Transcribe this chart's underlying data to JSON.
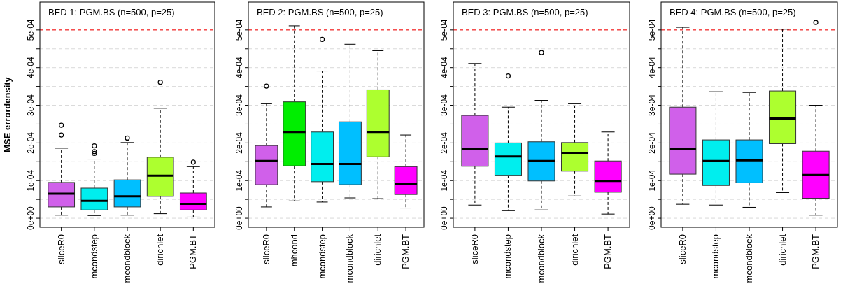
{
  "chart_data": [
    {
      "type": "box",
      "title": "BED 1: PGM.BS (n=500, p=25)",
      "ylabel": "MSE errordensity",
      "categories": [
        "sliceR0",
        "mcondstep",
        "mcondblock",
        "dirichlet",
        "PGM.BT"
      ],
      "colors": [
        "#d060ea",
        "#00eeee",
        "#00bfff",
        "#adff2f",
        "#ff00ff"
      ],
      "boxes": [
        {
          "low": 8e-06,
          "q1": 3e-05,
          "median": 6.5e-05,
          "q3": 9.5e-05,
          "high": 0.000186,
          "outliers": [
            0.000221,
            0.000247
          ]
        },
        {
          "low": 7e-06,
          "q1": 2.2e-05,
          "median": 4.6e-05,
          "q3": 8e-05,
          "high": 0.000157,
          "outliers": [
            0.000172,
            0.000177,
            0.000192
          ]
        },
        {
          "low": 8e-06,
          "q1": 3e-05,
          "median": 5.8e-05,
          "q3": 0.000102,
          "high": 0.000201,
          "outliers": [
            0.000213
          ]
        },
        {
          "low": 1.2e-05,
          "q1": 5.8e-05,
          "median": 0.000113,
          "q3": 0.000162,
          "high": 0.000292,
          "outliers": [
            0.000361
          ]
        },
        {
          "low": 3e-06,
          "q1": 2.2e-05,
          "median": 3.8e-05,
          "q3": 6.7e-05,
          "high": 0.000137,
          "outliers": [
            0.000149
          ]
        }
      ],
      "ylim": [
        -2.4e-05,
        0.000574
      ],
      "yticks": [
        {
          "value": 0,
          "label": "0e+00"
        },
        {
          "value": 5e-05,
          "label": null
        },
        {
          "value": 0.0001,
          "label": "1e-04"
        },
        {
          "value": 0.00015,
          "label": null
        },
        {
          "value": 0.0002,
          "label": "2e-04"
        },
        {
          "value": 0.00025,
          "label": null
        },
        {
          "value": 0.0003,
          "label": "3e-04"
        },
        {
          "value": 0.00035,
          "label": null
        },
        {
          "value": 0.0004,
          "label": "4e-04"
        },
        {
          "value": 0.00045,
          "label": null
        },
        {
          "value": 0.0005,
          "label": "5e-04"
        }
      ],
      "grid": "y",
      "ref_lines": [
        {
          "axis": "y",
          "value": 0.0005,
          "color": "#ff0000",
          "line_style": "dashed"
        }
      ]
    },
    {
      "type": "box",
      "title": "BED 2: PGM.BS (n=500, p=25)",
      "categories": [
        "sliceR0",
        "mhcond",
        "mcondstep",
        "mcondblock",
        "dirichlet",
        "PGM.BT"
      ],
      "colors": [
        "#d060ea",
        "#00ee00",
        "#00eeee",
        "#00bfff",
        "#adff2f",
        "#ff00ff"
      ],
      "boxes": [
        {
          "low": 3e-05,
          "q1": 8.9e-05,
          "median": 0.000152,
          "q3": 0.000193,
          "high": 0.000304,
          "outliers": [
            0.000351
          ]
        },
        {
          "low": 4.6e-05,
          "q1": 0.000139,
          "median": 0.000229,
          "q3": 0.000309,
          "high": 0.000511
        },
        {
          "low": 4.3e-05,
          "q1": 9.7e-05,
          "median": 0.000144,
          "q3": 0.000229,
          "high": 0.000391,
          "outliers": [
            0.000475
          ]
        },
        {
          "low": 5.4e-05,
          "q1": 8.9e-05,
          "median": 0.000144,
          "q3": 0.000256,
          "high": 0.000462
        },
        {
          "low": 5.2e-05,
          "q1": 0.000163,
          "median": 0.000229,
          "q3": 0.000341,
          "high": 0.000445
        },
        {
          "low": 2.7e-05,
          "q1": 6.3e-05,
          "median": 9e-05,
          "q3": 0.000137,
          "high": 0.000221
        }
      ],
      "ylim": [
        -2.4e-05,
        0.000574
      ],
      "yticks": [
        {
          "value": 0,
          "label": "0e+00"
        },
        {
          "value": 5e-05,
          "label": null
        },
        {
          "value": 0.0001,
          "label": "1e-04"
        },
        {
          "value": 0.00015,
          "label": null
        },
        {
          "value": 0.0002,
          "label": "2e-04"
        },
        {
          "value": 0.00025,
          "label": null
        },
        {
          "value": 0.0003,
          "label": "3e-04"
        },
        {
          "value": 0.00035,
          "label": null
        },
        {
          "value": 0.0004,
          "label": "4e-04"
        },
        {
          "value": 0.00045,
          "label": null
        },
        {
          "value": 0.0005,
          "label": "5e-04"
        }
      ],
      "grid": "y",
      "ref_lines": [
        {
          "axis": "y",
          "value": 0.0005,
          "color": "#ff0000",
          "line_style": "dashed"
        }
      ]
    },
    {
      "type": "box",
      "title": "BED 3: PGM.BS (n=500, p=25)",
      "categories": [
        "sliceR0",
        "mcondstep",
        "mcondblock",
        "dirichlet",
        "PGM.BT"
      ],
      "colors": [
        "#d060ea",
        "#00eeee",
        "#00bfff",
        "#adff2f",
        "#ff00ff"
      ],
      "boxes": [
        {
          "low": 3.5e-05,
          "q1": 0.000138,
          "median": 0.000183,
          "q3": 0.000273,
          "high": 0.000411
        },
        {
          "low": 2e-05,
          "q1": 0.000114,
          "median": 0.000164,
          "q3": 0.0002,
          "high": 0.000295,
          "outliers": [
            0.000378
          ]
        },
        {
          "low": 2.2e-05,
          "q1": 9.9e-05,
          "median": 0.000152,
          "q3": 0.000203,
          "high": 0.000313,
          "outliers": [
            0.00044
          ]
        },
        {
          "low": 5.9e-05,
          "q1": 0.000125,
          "median": 0.000174,
          "q3": 0.000201,
          "high": 0.000304
        },
        {
          "low": 1.1e-05,
          "q1": 6.9e-05,
          "median": 9.9e-05,
          "q3": 0.000152,
          "high": 0.000229
        }
      ],
      "ylim": [
        -2.4e-05,
        0.000574
      ],
      "yticks": [
        {
          "value": 0,
          "label": "0e+00"
        },
        {
          "value": 5e-05,
          "label": null
        },
        {
          "value": 0.0001,
          "label": "1e-04"
        },
        {
          "value": 0.00015,
          "label": null
        },
        {
          "value": 0.0002,
          "label": "2e-04"
        },
        {
          "value": 0.00025,
          "label": null
        },
        {
          "value": 0.0003,
          "label": "3e-04"
        },
        {
          "value": 0.00035,
          "label": null
        },
        {
          "value": 0.0004,
          "label": "4e-04"
        },
        {
          "value": 0.00045,
          "label": null
        },
        {
          "value": 0.0005,
          "label": "5e-04"
        }
      ],
      "grid": "y",
      "ref_lines": [
        {
          "axis": "y",
          "value": 0.0005,
          "color": "#ff0000",
          "line_style": "dashed"
        }
      ]
    },
    {
      "type": "box",
      "title": "BED 4: PGM.BS (n=500, p=25)",
      "categories": [
        "sliceR0",
        "mcondstep",
        "mcondblock",
        "dirichlet",
        "PGM.BT"
      ],
      "colors": [
        "#d060ea",
        "#00eeee",
        "#00bfff",
        "#adff2f",
        "#ff00ff"
      ],
      "boxes": [
        {
          "low": 3.7e-05,
          "q1": 0.000117,
          "median": 0.000185,
          "q3": 0.000295,
          "high": 0.000507
        },
        {
          "low": 3.5e-05,
          "q1": 8.7e-05,
          "median": 0.000152,
          "q3": 0.000208,
          "high": 0.000336
        },
        {
          "low": 2.9e-05,
          "q1": 9.4e-05,
          "median": 0.000154,
          "q3": 0.000208,
          "high": 0.000334
        },
        {
          "low": 6.8e-05,
          "q1": 0.000198,
          "median": 0.000265,
          "q3": 0.000338,
          "high": 0.000502
        },
        {
          "low": 8e-06,
          "q1": 5.3e-05,
          "median": 0.000115,
          "q3": 0.000178,
          "high": 0.0003,
          "outliers": [
            0.00052
          ]
        }
      ],
      "ylim": [
        -2.4e-05,
        0.000574
      ],
      "yticks": [
        {
          "value": 0,
          "label": "0e+00"
        },
        {
          "value": 5e-05,
          "label": null
        },
        {
          "value": 0.0001,
          "label": "1e-04"
        },
        {
          "value": 0.00015,
          "label": null
        },
        {
          "value": 0.0002,
          "label": "2e-04"
        },
        {
          "value": 0.00025,
          "label": null
        },
        {
          "value": 0.0003,
          "label": "3e-04"
        },
        {
          "value": 0.00035,
          "label": null
        },
        {
          "value": 0.0004,
          "label": "4e-04"
        },
        {
          "value": 0.00045,
          "label": null
        },
        {
          "value": 0.0005,
          "label": "5e-04"
        }
      ],
      "grid": "y",
      "ref_lines": [
        {
          "axis": "y",
          "value": 0.0005,
          "color": "#ff0000",
          "line_style": "dashed"
        }
      ]
    }
  ]
}
